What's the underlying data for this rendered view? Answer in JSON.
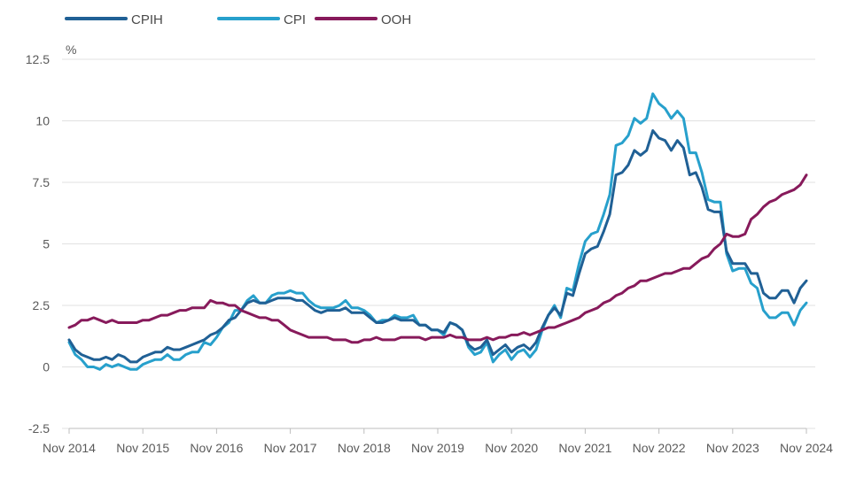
{
  "chart_data": {
    "type": "line",
    "ylabel": "%",
    "ylim": [
      -2.5,
      12.5
    ],
    "yticks": [
      -2.5,
      0,
      2.5,
      5,
      7.5,
      10,
      12.5
    ],
    "ytick_labels": [
      "-2.5",
      "0",
      "2.5",
      "5",
      "7.5",
      "10",
      "12.5"
    ],
    "xlim": [
      "Nov 2014",
      "Nov 2024"
    ],
    "xtick_labels": [
      "Nov 2014",
      "Nov 2015",
      "Nov 2016",
      "Nov 2017",
      "Nov 2018",
      "Nov 2019",
      "Nov 2020",
      "Nov 2021",
      "Nov 2022",
      "Nov 2023",
      "Nov 2024"
    ],
    "grid": "horizontal",
    "legend_position": "top-left",
    "x": [
      "2014-11",
      "2014-12",
      "2015-01",
      "2015-02",
      "2015-03",
      "2015-04",
      "2015-05",
      "2015-06",
      "2015-07",
      "2015-08",
      "2015-09",
      "2015-10",
      "2015-11",
      "2015-12",
      "2016-01",
      "2016-02",
      "2016-03",
      "2016-04",
      "2016-05",
      "2016-06",
      "2016-07",
      "2016-08",
      "2016-09",
      "2016-10",
      "2016-11",
      "2016-12",
      "2017-01",
      "2017-02",
      "2017-03",
      "2017-04",
      "2017-05",
      "2017-06",
      "2017-07",
      "2017-08",
      "2017-09",
      "2017-10",
      "2017-11",
      "2017-12",
      "2018-01",
      "2018-02",
      "2018-03",
      "2018-04",
      "2018-05",
      "2018-06",
      "2018-07",
      "2018-08",
      "2018-09",
      "2018-10",
      "2018-11",
      "2018-12",
      "2019-01",
      "2019-02",
      "2019-03",
      "2019-04",
      "2019-05",
      "2019-06",
      "2019-07",
      "2019-08",
      "2019-09",
      "2019-10",
      "2019-11",
      "2019-12",
      "2020-01",
      "2020-02",
      "2020-03",
      "2020-04",
      "2020-05",
      "2020-06",
      "2020-07",
      "2020-08",
      "2020-09",
      "2020-10",
      "2020-11",
      "2020-12",
      "2021-01",
      "2021-02",
      "2021-03",
      "2021-04",
      "2021-05",
      "2021-06",
      "2021-07",
      "2021-08",
      "2021-09",
      "2021-10",
      "2021-11",
      "2021-12",
      "2022-01",
      "2022-02",
      "2022-03",
      "2022-04",
      "2022-05",
      "2022-06",
      "2022-07",
      "2022-08",
      "2022-09",
      "2022-10",
      "2022-11",
      "2022-12",
      "2023-01",
      "2023-02",
      "2023-03",
      "2023-04",
      "2023-05",
      "2023-06",
      "2023-07",
      "2023-08",
      "2023-09",
      "2023-10",
      "2023-11",
      "2023-12",
      "2024-01",
      "2024-02",
      "2024-03",
      "2024-04",
      "2024-05",
      "2024-06",
      "2024-07",
      "2024-08",
      "2024-09",
      "2024-10",
      "2024-11"
    ],
    "series": [
      {
        "name": "CPIH",
        "color": "#206095",
        "values": [
          1.1,
          0.7,
          0.5,
          0.4,
          0.3,
          0.3,
          0.4,
          0.3,
          0.5,
          0.4,
          0.2,
          0.2,
          0.4,
          0.5,
          0.6,
          0.6,
          0.8,
          0.7,
          0.7,
          0.8,
          0.9,
          1.0,
          1.1,
          1.3,
          1.4,
          1.6,
          1.9,
          2.0,
          2.3,
          2.6,
          2.7,
          2.6,
          2.6,
          2.7,
          2.8,
          2.8,
          2.8,
          2.7,
          2.7,
          2.5,
          2.3,
          2.2,
          2.3,
          2.3,
          2.3,
          2.4,
          2.2,
          2.2,
          2.2,
          2.0,
          1.8,
          1.8,
          1.9,
          2.0,
          1.9,
          1.9,
          1.9,
          1.7,
          1.7,
          1.5,
          1.5,
          1.4,
          1.8,
          1.7,
          1.5,
          0.9,
          0.7,
          0.8,
          1.1,
          0.5,
          0.7,
          0.9,
          0.6,
          0.8,
          0.9,
          0.7,
          1.0,
          1.6,
          2.1,
          2.4,
          2.1,
          3.0,
          2.9,
          3.8,
          4.6,
          4.8,
          4.9,
          5.5,
          6.2,
          7.8,
          7.9,
          8.2,
          8.8,
          8.6,
          8.8,
          9.6,
          9.3,
          9.2,
          8.8,
          9.2,
          8.9,
          7.8,
          7.9,
          7.3,
          6.4,
          6.3,
          6.3,
          4.7,
          4.2,
          4.2,
          4.2,
          3.8,
          3.8,
          3.0,
          2.8,
          2.8,
          3.1,
          3.1,
          2.6,
          3.2,
          3.5
        ]
      },
      {
        "name": "CPI",
        "color": "#27a0cc",
        "values": [
          1.0,
          0.5,
          0.3,
          0.0,
          0.0,
          -0.1,
          0.1,
          0.0,
          0.1,
          0.0,
          -0.1,
          -0.1,
          0.1,
          0.2,
          0.3,
          0.3,
          0.5,
          0.3,
          0.3,
          0.5,
          0.6,
          0.6,
          1.0,
          0.9,
          1.2,
          1.6,
          1.8,
          2.3,
          2.3,
          2.7,
          2.9,
          2.6,
          2.6,
          2.9,
          3.0,
          3.0,
          3.1,
          3.0,
          3.0,
          2.7,
          2.5,
          2.4,
          2.4,
          2.4,
          2.5,
          2.7,
          2.4,
          2.4,
          2.3,
          2.1,
          1.8,
          1.9,
          1.9,
          2.1,
          2.0,
          2.0,
          2.1,
          1.7,
          1.7,
          1.5,
          1.5,
          1.3,
          1.8,
          1.7,
          1.5,
          0.8,
          0.5,
          0.6,
          1.0,
          0.2,
          0.5,
          0.7,
          0.3,
          0.6,
          0.7,
          0.4,
          0.7,
          1.5,
          2.1,
          2.5,
          2.0,
          3.2,
          3.1,
          4.2,
          5.1,
          5.4,
          5.5,
          6.2,
          7.0,
          9.0,
          9.1,
          9.4,
          10.1,
          9.9,
          10.1,
          11.1,
          10.7,
          10.5,
          10.1,
          10.4,
          10.1,
          8.7,
          8.7,
          7.9,
          6.8,
          6.7,
          6.7,
          4.6,
          3.9,
          4.0,
          4.0,
          3.4,
          3.2,
          2.3,
          2.0,
          2.0,
          2.2,
          2.2,
          1.7,
          2.3,
          2.6
        ]
      },
      {
        "name": "OOH",
        "color": "#871a5b",
        "values": [
          1.6,
          1.7,
          1.9,
          1.9,
          2.0,
          1.9,
          1.8,
          1.9,
          1.8,
          1.8,
          1.8,
          1.8,
          1.9,
          1.9,
          2.0,
          2.1,
          2.1,
          2.2,
          2.3,
          2.3,
          2.4,
          2.4,
          2.4,
          2.7,
          2.6,
          2.6,
          2.5,
          2.5,
          2.3,
          2.2,
          2.1,
          2.0,
          2.0,
          1.9,
          1.9,
          1.7,
          1.5,
          1.4,
          1.3,
          1.2,
          1.2,
          1.2,
          1.2,
          1.1,
          1.1,
          1.1,
          1.0,
          1.0,
          1.1,
          1.1,
          1.2,
          1.1,
          1.1,
          1.1,
          1.2,
          1.2,
          1.2,
          1.2,
          1.1,
          1.2,
          1.2,
          1.2,
          1.3,
          1.2,
          1.2,
          1.1,
          1.1,
          1.1,
          1.2,
          1.1,
          1.2,
          1.2,
          1.3,
          1.3,
          1.4,
          1.3,
          1.4,
          1.5,
          1.6,
          1.6,
          1.7,
          1.8,
          1.9,
          2.0,
          2.2,
          2.3,
          2.4,
          2.6,
          2.7,
          2.9,
          3.0,
          3.2,
          3.3,
          3.5,
          3.5,
          3.6,
          3.7,
          3.8,
          3.8,
          3.9,
          4.0,
          4.0,
          4.2,
          4.4,
          4.5,
          4.8,
          5.0,
          5.4,
          5.3,
          5.3,
          5.4,
          6.0,
          6.2,
          6.5,
          6.7,
          6.8,
          7.0,
          7.1,
          7.2,
          7.4,
          7.8
        ]
      }
    ]
  }
}
